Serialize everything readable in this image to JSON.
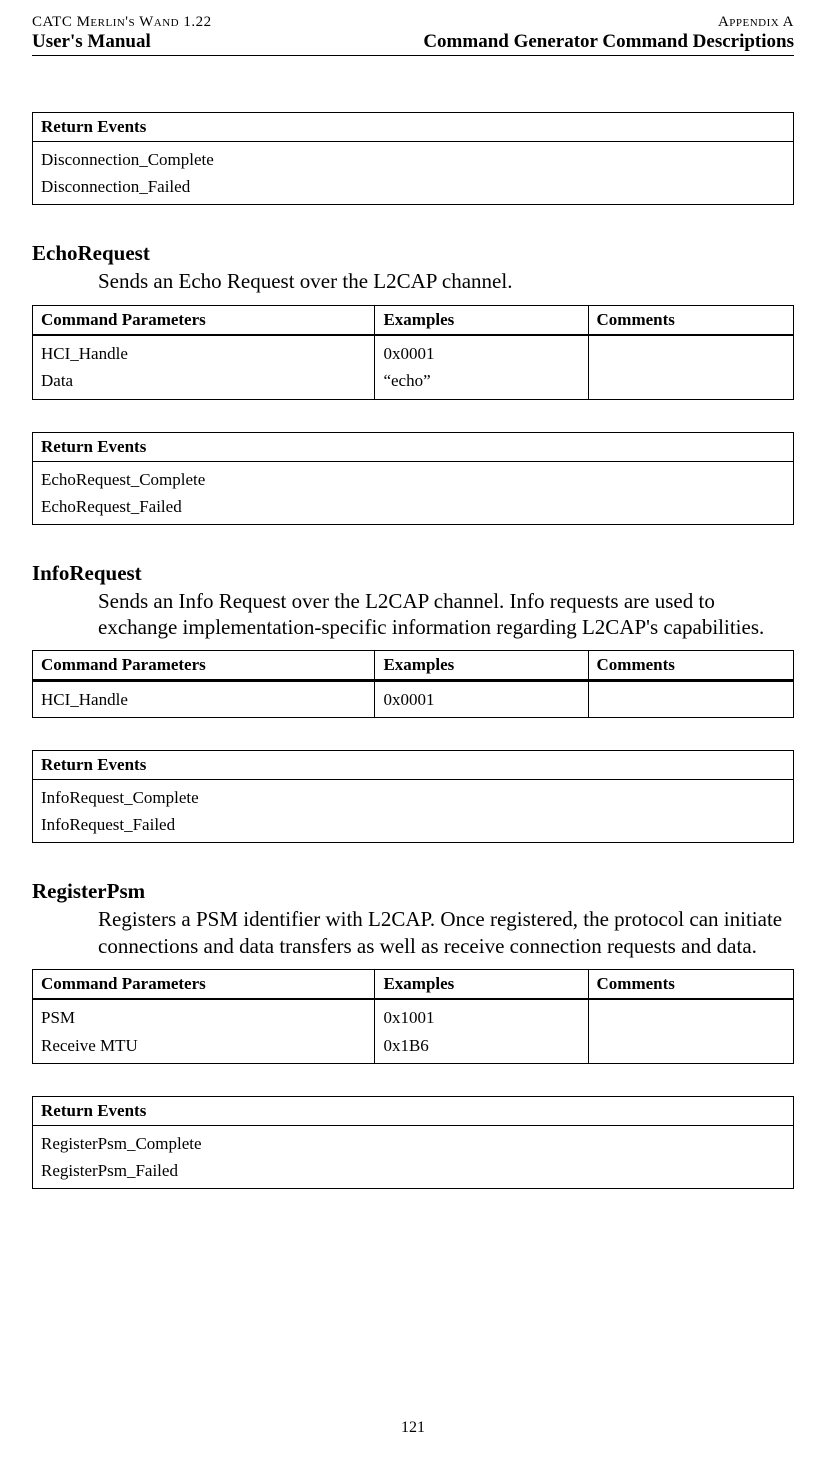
{
  "header": {
    "topLeft": "CATC Merlin's Wand 1.22",
    "topRight": "Appendix A",
    "left": "User's Manual",
    "right": "Command Generator Command Descriptions"
  },
  "pageNumber": "121",
  "tableHeaders": {
    "params": "Command Parameters",
    "examples": "Examples",
    "comments": "Comments",
    "events": "Return Events"
  },
  "topEvents": {
    "rows": [
      "Disconnection_Complete",
      "Disconnection_Failed"
    ]
  },
  "echo": {
    "name": "EchoRequest",
    "desc": "Sends an Echo Request over the L2CAP channel.",
    "params": [
      {
        "p": "HCI_Handle",
        "e": "0x0001"
      },
      {
        "p": "Data",
        "e": "“echo”"
      }
    ],
    "events": [
      "EchoRequest_Complete",
      "EchoRequest_Failed"
    ]
  },
  "info": {
    "name": "InfoRequest",
    "desc": "Sends an Info Request over the L2CAP channel. Info requests are used to exchange implementation-specific information regarding L2CAP's capabilities.",
    "params": [
      {
        "p": "HCI_Handle",
        "e": "0x0001"
      }
    ],
    "events": [
      "InfoRequest_Complete",
      "InfoRequest_Failed"
    ]
  },
  "register": {
    "name": "RegisterPsm",
    "desc": "Registers a PSM identifier with L2CAP. Once registered, the protocol can initiate connections and data transfers as well as receive connection requests and data.",
    "params": [
      {
        "p": "PSM",
        "e": "0x1001"
      },
      {
        "p": "Receive MTU",
        "e": "0x1B6"
      }
    ],
    "events": [
      "RegisterPsm_Complete",
      "RegisterPsm_Failed"
    ]
  }
}
